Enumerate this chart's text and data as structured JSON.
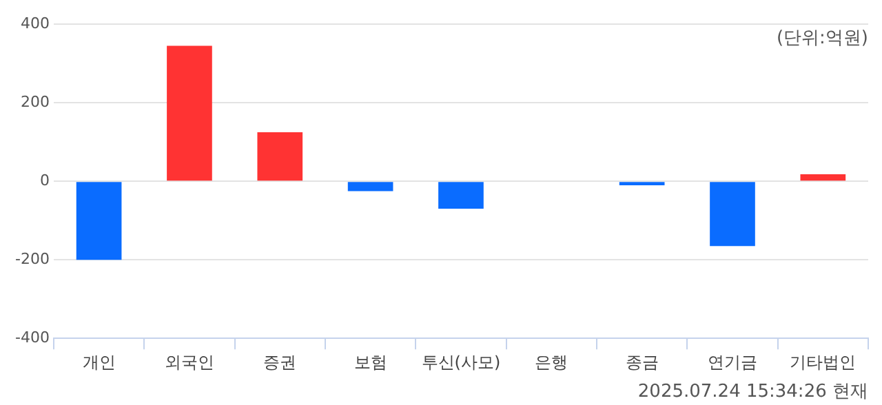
{
  "chart_data": {
    "type": "bar",
    "categories": [
      "개인",
      "외국인",
      "증권",
      "보험",
      "투신(사모)",
      "은행",
      "종금",
      "연기금",
      "기타법인"
    ],
    "values": [
      -200,
      345,
      125,
      -25,
      -70,
      0,
      -10,
      -165,
      18
    ],
    "colors": [
      "#0a6cff",
      "#ff3333",
      "#ff3333",
      "#0a6cff",
      "#0a6cff",
      "#0a6cff",
      "#0a6cff",
      "#0a6cff",
      "#ff3333"
    ],
    "ylim": [
      -400,
      400
    ],
    "yticks": [
      -400,
      -200,
      0,
      200,
      400
    ],
    "grid": "y",
    "legend": false,
    "annotations": [
      "(단위:억원)",
      "2025.07.24 15:34:26 현재"
    ]
  }
}
